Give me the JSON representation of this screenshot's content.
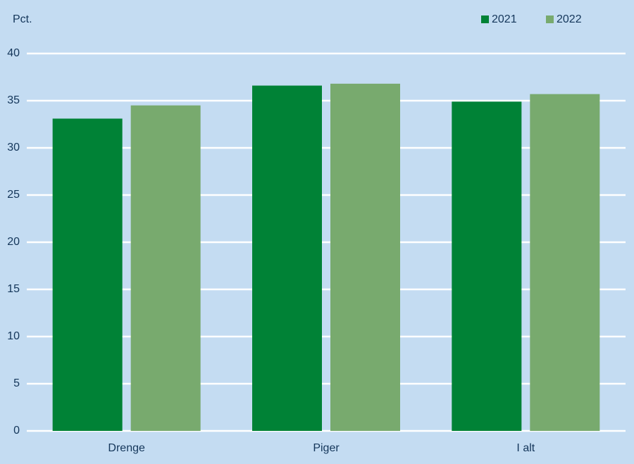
{
  "chart_data": {
    "type": "bar",
    "y_label": "Pct.",
    "categories": [
      "Drenge",
      "Piger",
      "I alt"
    ],
    "series": [
      {
        "name": "2021",
        "color": "#008236",
        "values": [
          33.1,
          36.6,
          34.9
        ]
      },
      {
        "name": "2022",
        "color": "#78aa6e",
        "values": [
          34.5,
          36.8,
          35.7
        ]
      }
    ],
    "ylim": [
      0,
      40
    ],
    "yticks": [
      0,
      5,
      10,
      15,
      20,
      25,
      30,
      35,
      40
    ],
    "grid": true,
    "legend": "top-right"
  }
}
